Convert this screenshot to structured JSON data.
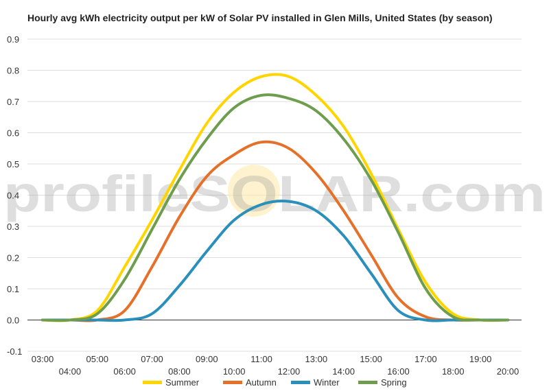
{
  "chart_data": {
    "type": "line",
    "title": "Hourly avg kWh electricity output per kW of Solar PV installed in Glen Mills, United States (by season)",
    "watermark": "profileSOLAR.com",
    "xlabel": "",
    "ylabel": "",
    "ylim": [
      -0.1,
      0.9
    ],
    "yticks": [
      "-0.1",
      "0.0",
      "0.1",
      "0.2",
      "0.3",
      "0.4",
      "0.5",
      "0.6",
      "0.7",
      "0.8",
      "0.9"
    ],
    "x": [
      "03:00",
      "04:00",
      "05:00",
      "06:00",
      "07:00",
      "08:00",
      "09:00",
      "10:00",
      "11:00",
      "12:00",
      "13:00",
      "14:00",
      "15:00",
      "16:00",
      "17:00",
      "18:00",
      "19:00",
      "20:00"
    ],
    "grid": true,
    "legend": "bottom",
    "series": [
      {
        "name": "Summer",
        "color": "#FFD500",
        "values": [
          0.0,
          0.0,
          0.03,
          0.17,
          0.32,
          0.48,
          0.63,
          0.73,
          0.78,
          0.78,
          0.72,
          0.62,
          0.47,
          0.29,
          0.12,
          0.02,
          0.0,
          0.0
        ]
      },
      {
        "name": "Autumn",
        "color": "#E5702A",
        "values": [
          0.0,
          0.0,
          0.0,
          0.03,
          0.17,
          0.33,
          0.46,
          0.53,
          0.57,
          0.55,
          0.47,
          0.35,
          0.21,
          0.07,
          0.01,
          0.0,
          0.0,
          0.0
        ]
      },
      {
        "name": "Winter",
        "color": "#2A8FBA",
        "values": [
          0.0,
          0.0,
          0.0,
          0.0,
          0.02,
          0.11,
          0.22,
          0.32,
          0.37,
          0.38,
          0.35,
          0.27,
          0.15,
          0.03,
          0.0,
          0.0,
          0.0,
          0.0
        ]
      },
      {
        "name": "Spring",
        "color": "#6E9D4E",
        "values": [
          0.0,
          0.0,
          0.02,
          0.13,
          0.29,
          0.45,
          0.58,
          0.68,
          0.72,
          0.71,
          0.67,
          0.58,
          0.45,
          0.28,
          0.1,
          0.01,
          0.0,
          0.0
        ]
      }
    ]
  }
}
